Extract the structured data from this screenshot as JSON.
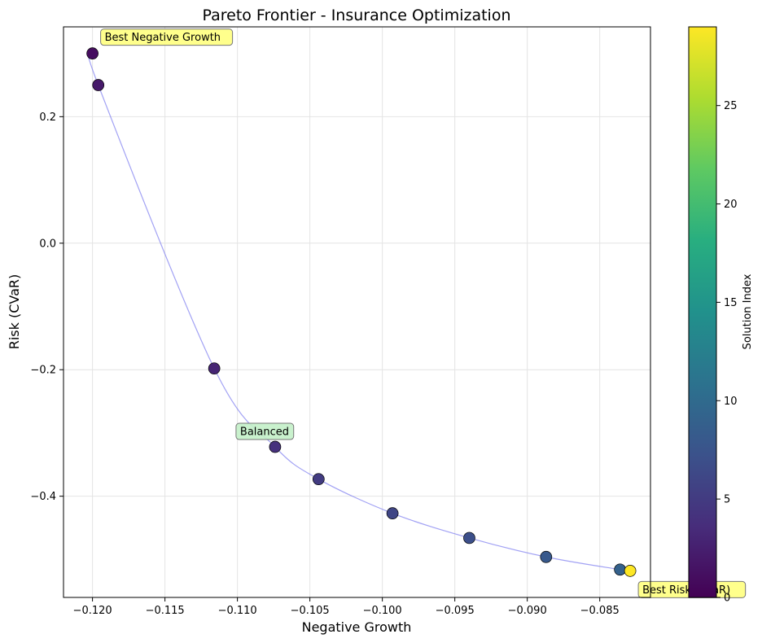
{
  "chart_data": {
    "type": "scatter",
    "title": "Pareto Frontier - Insurance Optimization",
    "xlabel": "Negative Growth",
    "ylabel": "Risk (CVaR)",
    "xlim": [
      -0.122,
      -0.0815
    ],
    "ylim": [
      -0.56,
      0.342
    ],
    "x_ticks": [
      -0.12,
      -0.115,
      -0.11,
      -0.105,
      -0.1,
      -0.095,
      -0.09,
      -0.085
    ],
    "x_tick_labels": [
      "−0.120",
      "−0.115",
      "−0.110",
      "−0.105",
      "−0.100",
      "−0.095",
      "−0.090",
      "−0.085"
    ],
    "y_ticks": [
      -0.4,
      -0.2,
      0.0,
      0.2
    ],
    "y_tick_labels": [
      "−0.4",
      "−0.2",
      "0.0",
      "0.2"
    ],
    "grid": true,
    "frontier_line_color": "#7b7bf0",
    "points": [
      {
        "x": -0.12,
        "y": 0.3,
        "index": 1
      },
      {
        "x": -0.1196,
        "y": 0.25,
        "index": 2
      },
      {
        "x": -0.1116,
        "y": -0.198,
        "index": 3
      },
      {
        "x": -0.1074,
        "y": -0.322,
        "index": 4
      },
      {
        "x": -0.1044,
        "y": -0.373,
        "index": 5
      },
      {
        "x": -0.0993,
        "y": -0.427,
        "index": 6
      },
      {
        "x": -0.094,
        "y": -0.466,
        "index": 7
      },
      {
        "x": -0.0887,
        "y": -0.496,
        "index": 8
      },
      {
        "x": -0.0836,
        "y": -0.516,
        "index": 9
      },
      {
        "x": -0.0829,
        "y": -0.518,
        "index": 29
      }
    ],
    "annotations": [
      {
        "text": "Best Negative Growth",
        "x": -0.12,
        "y": 0.3,
        "color": "#ffff7f",
        "anchor": "upper-right"
      },
      {
        "text": "Balanced",
        "x": -0.1074,
        "y": -0.322,
        "color": "#c3f0c8",
        "anchor": "upper-left"
      },
      {
        "text": "Best Risk (CVaR)",
        "x": -0.0829,
        "y": -0.518,
        "color": "#ffff7f",
        "anchor": "lower-right"
      }
    ],
    "colorbar": {
      "label": "Solution Index",
      "min": 0,
      "max": 29,
      "ticks": [
        0,
        5,
        10,
        15,
        20,
        25
      ],
      "colormap": "viridis"
    }
  }
}
